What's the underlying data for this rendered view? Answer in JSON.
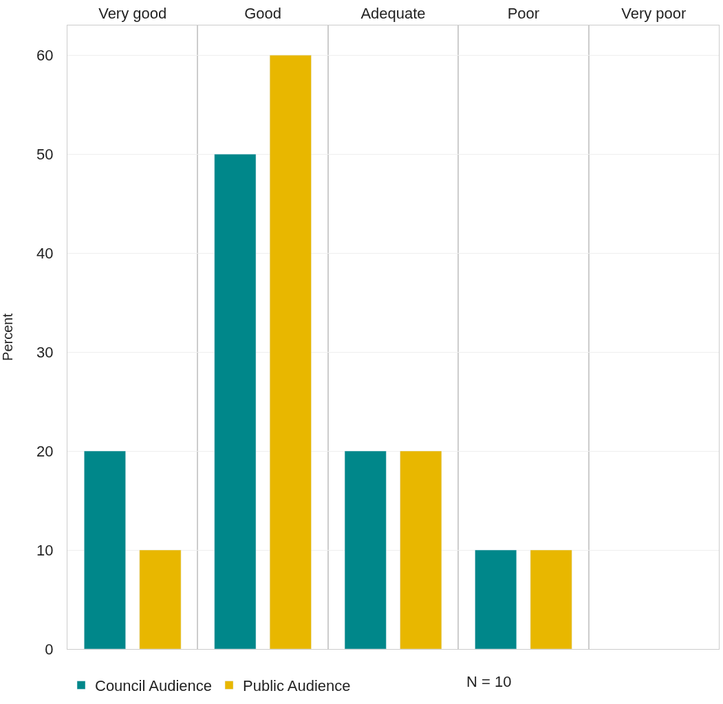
{
  "chart_data": {
    "type": "bar",
    "ylabel": "Percent",
    "categories": [
      "Very good",
      "Good",
      "Adequate",
      "Poor",
      "Very poor"
    ],
    "series": [
      {
        "name": "Council Audience",
        "color": "#00878a",
        "values": [
          20,
          50,
          20,
          10,
          null
        ]
      },
      {
        "name": "Public Audience",
        "color": "#e8b700",
        "values": [
          10,
          60,
          20,
          10,
          null
        ]
      }
    ],
    "ylim": [
      0,
      63
    ],
    "yticks": [
      0,
      10,
      20,
      30,
      40,
      50,
      60
    ],
    "grid": true,
    "legend": "bottom",
    "annotations": [
      "N = 10"
    ]
  }
}
